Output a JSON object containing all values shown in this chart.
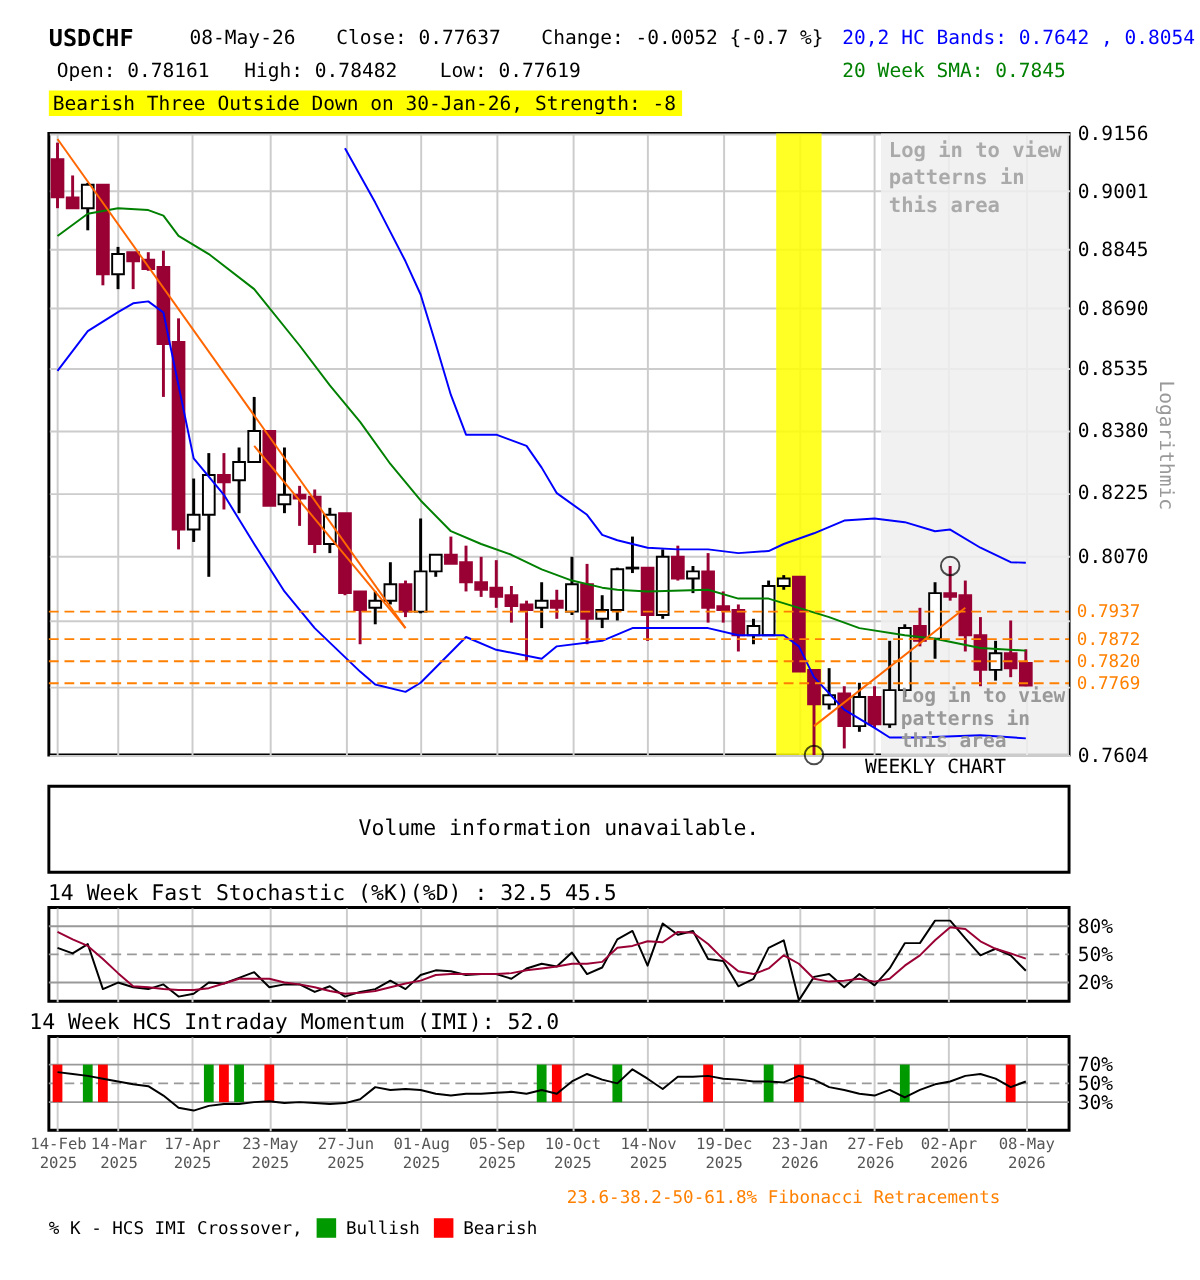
{
  "chart_data": [
    {
      "type": "candlestick",
      "title": "USDCHF",
      "ylabel": "Logarithmic",
      "annotations": [
        "08-May-26",
        "Close: 0.77637",
        "Change: -0.0052 {-0.7 %}",
        "Open: 0.78161",
        "High: 0.78482",
        "Low: 0.77619",
        "20,2 HC Bands: 0.7642 , 0.8054",
        "20 Week SMA: 0.7845",
        "Bearish Three Outside Down on 30-Jan-26, Strength: -8",
        "Log in to view patterns in this area",
        "WEEKLY CHART"
      ],
      "x": [
        "2025-02-14",
        "2025-02-21",
        "2025-02-28",
        "2025-03-07",
        "2025-03-14",
        "2025-03-21",
        "2025-03-28",
        "2025-04-04",
        "2025-04-11",
        "2025-04-18",
        "2025-04-25",
        "2025-05-02",
        "2025-05-09",
        "2025-05-16",
        "2025-05-23",
        "2025-05-30",
        "2025-06-06",
        "2025-06-13",
        "2025-06-20",
        "2025-06-27",
        "2025-07-04",
        "2025-07-11",
        "2025-07-18",
        "2025-07-25",
        "2025-08-01",
        "2025-08-08",
        "2025-08-15",
        "2025-08-22",
        "2025-08-29",
        "2025-09-05",
        "2025-09-12",
        "2025-09-19",
        "2025-09-26",
        "2025-10-03",
        "2025-10-10",
        "2025-10-17",
        "2025-10-24",
        "2025-10-31",
        "2025-11-07",
        "2025-11-14",
        "2025-11-21",
        "2025-11-28",
        "2025-12-05",
        "2025-12-12",
        "2025-12-19",
        "2025-12-26",
        "2026-01-02",
        "2026-01-09",
        "2026-01-16",
        "2026-01-23",
        "2026-01-30",
        "2026-02-06",
        "2026-02-13",
        "2026-02-20",
        "2026-02-27",
        "2026-03-06",
        "2026-03-13",
        "2026-03-20",
        "2026-03-27",
        "2026-04-03",
        "2026-04-10",
        "2026-04-17",
        "2026-04-24",
        "2026-05-01",
        "2026-05-08"
      ],
      "ohlc": [
        [
          0.9086,
          0.9131,
          0.8954,
          0.8983
        ],
        [
          0.8983,
          0.9042,
          0.8954,
          0.8954
        ],
        [
          0.8954,
          0.9022,
          0.8895,
          0.9017
        ],
        [
          0.9017,
          0.9017,
          0.875,
          0.8779
        ],
        [
          0.8779,
          0.8851,
          0.874,
          0.8832
        ],
        [
          0.8837,
          0.8837,
          0.874,
          0.8813
        ],
        [
          0.8817,
          0.8837,
          0.8788,
          0.8793
        ],
        [
          0.8798,
          0.8841,
          0.8463,
          0.8598
        ],
        [
          0.8603,
          0.8664,
          0.8086,
          0.8134
        ],
        [
          0.8134,
          0.8259,
          0.8104,
          0.817
        ],
        [
          0.817,
          0.8322,
          0.802,
          0.8268
        ],
        [
          0.8268,
          0.8322,
          0.8183,
          0.825
        ],
        [
          0.8255,
          0.8336,
          0.8174,
          0.83
        ],
        [
          0.83,
          0.8463,
          0.83,
          0.8377
        ],
        [
          0.8377,
          0.8377,
          0.8192,
          0.8192
        ],
        [
          0.8196,
          0.8336,
          0.8174,
          0.8219
        ],
        [
          0.8219,
          0.8241,
          0.8143,
          0.821
        ],
        [
          0.8214,
          0.8232,
          0.8077,
          0.8099
        ],
        [
          0.8099,
          0.8187,
          0.8077,
          0.817
        ],
        [
          0.8174,
          0.8174,
          0.7976,
          0.7981
        ],
        [
          0.7985,
          0.7985,
          0.786,
          0.7941
        ],
        [
          0.7946,
          0.7985,
          0.7907,
          0.7963
        ],
        [
          0.7963,
          0.8055,
          0.7954,
          0.8002
        ],
        [
          0.8002,
          0.8011,
          0.7924,
          0.7937
        ],
        [
          0.7937,
          0.8161,
          0.7933,
          0.8033
        ],
        [
          0.8033,
          0.8073,
          0.802,
          0.8073
        ],
        [
          0.8073,
          0.8117,
          0.8051,
          0.8051
        ],
        [
          0.8055,
          0.8095,
          0.7985,
          0.8007
        ],
        [
          0.8007,
          0.8068,
          0.7972,
          0.7989
        ],
        [
          0.7994,
          0.806,
          0.7946,
          0.7972
        ],
        [
          0.7976,
          0.7998,
          0.7911,
          0.795
        ],
        [
          0.7954,
          0.7963,
          0.7821,
          0.7941
        ],
        [
          0.7946,
          0.8007,
          0.7898,
          0.7963
        ],
        [
          0.7963,
          0.7989,
          0.792,
          0.7946
        ],
        [
          0.7937,
          0.8068,
          0.7929,
          0.8002
        ],
        [
          0.8002,
          0.8051,
          0.786,
          0.792
        ],
        [
          0.792,
          0.7976,
          0.7898,
          0.7941
        ],
        [
          0.7941,
          0.8042,
          0.7916,
          0.8038
        ],
        [
          0.804,
          0.8117,
          0.8029,
          0.8042
        ],
        [
          0.8042,
          0.8042,
          0.7868,
          0.7929
        ],
        [
          0.7929,
          0.8086,
          0.792,
          0.8068
        ],
        [
          0.8068,
          0.8095,
          0.8011,
          0.8016
        ],
        [
          0.8016,
          0.8046,
          0.7981,
          0.8033
        ],
        [
          0.8033,
          0.8077,
          0.7911,
          0.7946
        ],
        [
          0.795,
          0.7985,
          0.7911,
          0.7941
        ],
        [
          0.7941,
          0.7954,
          0.7843,
          0.7881
        ],
        [
          0.7881,
          0.792,
          0.786,
          0.7903
        ],
        [
          0.7881,
          0.8011,
          0.7881,
          0.7998
        ],
        [
          0.7998,
          0.8024,
          0.7989,
          0.8016
        ],
        [
          0.802,
          0.802,
          0.7796,
          0.7796
        ],
        [
          0.78,
          0.78,
          0.7604,
          0.772
        ],
        [
          0.772,
          0.7804,
          0.7708,
          0.7741
        ],
        [
          0.7745,
          0.7762,
          0.7619,
          0.767
        ],
        [
          0.767,
          0.777,
          0.7657,
          0.7737
        ],
        [
          0.7737,
          0.7762,
          0.7666,
          0.7674
        ],
        [
          0.7674,
          0.7868,
          0.7666,
          0.7753
        ],
        [
          0.7753,
          0.7907,
          0.7737,
          0.7898
        ],
        [
          0.7903,
          0.7946,
          0.7855,
          0.7868
        ],
        [
          0.7873,
          0.8007,
          0.7826,
          0.7981
        ],
        [
          0.7981,
          0.8046,
          0.7963,
          0.7972
        ],
        [
          0.7976,
          0.8011,
          0.7843,
          0.7881
        ],
        [
          0.7881,
          0.7924,
          0.7762,
          0.78
        ],
        [
          0.78,
          0.7868,
          0.7775,
          0.7839
        ],
        [
          0.7839,
          0.7916,
          0.7783,
          0.7804
        ],
        [
          0.78161,
          0.78482,
          0.77619,
          0.77637
        ]
      ],
      "colors": [
        "#990033",
        "#990033",
        "#ffffff",
        "#990033",
        "#ffffff",
        "#990033",
        "#990033",
        "#990033",
        "#990033",
        "#ffffff",
        "#ffffff",
        "#990033",
        "#ffffff",
        "#ffffff",
        "#990033",
        "#ffffff",
        "#990033",
        "#990033",
        "#ffffff",
        "#990033",
        "#990033",
        "#ffffff",
        "#ffffff",
        "#990033",
        "#ffffff",
        "#ffffff",
        "#990033",
        "#990033",
        "#990033",
        "#990033",
        "#990033",
        "#990033",
        "#ffffff",
        "#990033",
        "#ffffff",
        "#990033",
        "#ffffff",
        "#ffffff",
        "#ffffff",
        "#990033",
        "#ffffff",
        "#990033",
        "#ffffff",
        "#990033",
        "#990033",
        "#990033",
        "#ffffff",
        "#ffffff",
        "#ffffff",
        "#990033",
        "#990033",
        "#ffffff",
        "#990033",
        "#ffffff",
        "#990033",
        "#ffffff",
        "#ffffff",
        "#990033",
        "#ffffff",
        "#990033",
        "#990033",
        "#990033",
        "#ffffff",
        "#990033",
        "#990033"
      ],
      "series": [
        {
          "type": "line",
          "color": "#0000ff",
          "x": [
            "2025-06-27",
            "2025-07-11",
            "2025-07-25",
            "2025-08-01",
            "2025-08-08",
            "2025-08-15",
            "2025-08-22",
            "2025-09-05",
            "2025-09-19",
            "2025-09-26",
            "2025-10-03",
            "2025-10-17",
            "2025-10-24",
            "2025-10-31",
            "2025-11-14",
            "2025-11-28",
            "2025-12-12",
            "2025-12-26",
            "2026-01-09",
            "2026-01-16",
            "2026-01-30",
            "2026-02-13",
            "2026-02-27",
            "2026-03-13",
            "2026-03-27",
            "2026-04-03",
            "2026-04-17",
            "2026-05-01",
            "2026-05-08"
          ],
          "values": [
            0.9116,
            0.8969,
            0.8813,
            0.8726,
            0.8598,
            0.8468,
            0.8368,
            0.8368,
            0.834,
            0.8286,
            0.8223,
            0.817,
            0.8121,
            0.8108,
            0.809,
            0.8086,
            0.8086,
            0.8077,
            0.8082,
            0.8099,
            0.8125,
            0.8156,
            0.8161,
            0.8152,
            0.813,
            0.8134,
            0.809,
            0.8055,
            0.8054
          ]
        },
        {
          "type": "line",
          "color": "#0000ff",
          "x": [
            "2025-02-14",
            "2025-02-28",
            "2025-03-14",
            "2025-03-21",
            "2025-03-28",
            "2025-04-04",
            "2025-04-11",
            "2025-04-18",
            "2025-05-02",
            "2025-05-16",
            "2025-05-30",
            "2025-06-13",
            "2025-07-04",
            "2025-07-11",
            "2025-07-25",
            "2025-08-01",
            "2025-08-22",
            "2025-09-05",
            "2025-09-26",
            "2025-10-03",
            "2025-10-24",
            "2025-11-07",
            "2025-12-12",
            "2025-12-26",
            "2026-01-16",
            "2026-01-23",
            "2026-01-30",
            "2026-02-13",
            "2026-02-27",
            "2026-03-06",
            "2026-03-20",
            "2026-04-17",
            "2026-05-08"
          ],
          "values": [
            0.8529,
            0.8631,
            0.868,
            0.8703,
            0.8708,
            0.8679,
            0.8492,
            0.8309,
            0.8219,
            0.8099,
            0.7985,
            0.7898,
            0.7796,
            0.7766,
            0.7749,
            0.777,
            0.7877,
            0.7847,
            0.7826,
            0.7855,
            0.7868,
            0.7898,
            0.7898,
            0.7881,
            0.7881,
            0.7855,
            0.7783,
            0.7708,
            0.7666,
            0.7644,
            0.7644,
            0.7649,
            0.7642
          ]
        },
        {
          "type": "line",
          "color": "#008000",
          "x": [
            "2025-02-14",
            "2025-02-28",
            "2025-03-14",
            "2025-03-28",
            "2025-04-04",
            "2025-04-11",
            "2025-04-25",
            "2025-05-16",
            "2025-06-06",
            "2025-06-20",
            "2025-07-04",
            "2025-07-18",
            "2025-08-01",
            "2025-08-15",
            "2025-08-29",
            "2025-09-12",
            "2025-09-26",
            "2025-10-10",
            "2025-10-24",
            "2025-10-31",
            "2025-11-14",
            "2025-12-12",
            "2025-12-26",
            "2026-01-09",
            "2026-01-23",
            "2026-02-06",
            "2026-02-20",
            "2026-03-13",
            "2026-03-27",
            "2026-04-17",
            "2026-05-08"
          ],
          "values": [
            0.888,
            0.8939,
            0.8954,
            0.8949,
            0.8934,
            0.888,
            0.8832,
            0.874,
            0.8594,
            0.8492,
            0.84,
            0.8295,
            0.8205,
            0.813,
            0.8099,
            0.8073,
            0.8038,
            0.8011,
            0.7994,
            0.7989,
            0.7985,
            0.7989,
            0.7968,
            0.7968,
            0.7946,
            0.7924,
            0.7898,
            0.7881,
            0.7873,
            0.7851,
            0.7845
          ]
        },
        {
          "type": "line",
          "color": "#ff6600",
          "x": [
            "2025-02-14",
            "2025-07-25"
          ],
          "values": [
            0.9141,
            0.7898
          ]
        },
        {
          "type": "line",
          "color": "#ff6600",
          "x": [
            "2025-05-16",
            "2025-07-25"
          ],
          "values": [
            0.834,
            0.7898
          ]
        },
        {
          "type": "line",
          "color": "#ff6600",
          "x": [
            "2026-01-30",
            "2026-04-10"
          ],
          "values": [
            0.767,
            0.7946
          ]
        },
        {
          "type": "scatter",
          "color": "#000000",
          "marker": "circle",
          "x": [
            "2026-01-30",
            "2026-04-03"
          ],
          "values": [
            0.7604,
            0.8046
          ]
        }
      ],
      "log": "y",
      "ylim": [
        0.7604,
        0.9156
      ],
      "yticks": [
        0.9156,
        0.9001,
        0.8845,
        {
          "value": 0.869,
          "label": "0.8690"
        },
        0.8535,
        {
          "value": 0.838,
          "label": "0.8380"
        },
        0.8225,
        {
          "value": 0.807,
          "label": "0.8070"
        },
        {
          "value": 0.7915,
          "label": null
        },
        {
          "value": 0.776,
          "label": null
        },
        0.7604
      ],
      "xlim": [
        "2025-02-10",
        "2026-05-28"
      ],
      "xticks": [
        {
          "value": "2025-02-14",
          "label": null
        },
        {
          "value": "2025-03-14",
          "label": null
        },
        {
          "value": "2025-04-17",
          "label": null
        },
        {
          "value": "2025-05-23",
          "label": null
        },
        {
          "value": "2025-06-27",
          "label": null
        },
        {
          "value": "2025-08-01",
          "label": null
        },
        {
          "value": "2025-09-05",
          "label": null
        },
        {
          "value": "2025-10-10",
          "label": null
        },
        {
          "value": "2025-11-14",
          "label": null
        },
        {
          "value": "2025-12-19",
          "label": null
        },
        {
          "value": "2026-01-23",
          "label": null
        },
        {
          "value": "2026-02-27",
          "label": null
        },
        {
          "value": "2026-04-02",
          "label": null
        },
        {
          "value": "2026-05-08",
          "label": null
        }
      ],
      "tick_labels": "y",
      "grid": true,
      "bands": [
        {
          "axis": "x",
          "from": "2026-01-12T12:00",
          "to": "2026-02-02T12:00",
          "color": "#ffff00"
        },
        {
          "axis": "x",
          "from": "2026-03-02",
          "to": "2026-05-28",
          "color": "#efefef",
          "label": "Log in to view patterns in this area"
        }
      ],
      "ref_lines": [
        {
          "axis": "y",
          "value": 0.7937,
          "label": "0.7937",
          "color": "#ff8000",
          "line_style": "dashed"
        },
        {
          "axis": "y",
          "value": 0.7872,
          "label": "0.7872",
          "color": "#ff8000",
          "line_style": "dashed"
        },
        {
          "axis": "y",
          "value": 0.782,
          "label": "0.7820",
          "color": "#ff8000",
          "line_style": "dashed"
        },
        {
          "axis": "y",
          "value": 0.7769,
          "label": "0.7769",
          "color": "#ff8000",
          "line_style": "dashed"
        }
      ]
    },
    {
      "type": "other",
      "annotations": [
        "Volume information unavailable."
      ]
    },
    {
      "type": "line",
      "title": "14 Week Fast Stochastic (%K)(%D) : 32.5 45.5",
      "x": [
        "2025-02-14",
        "2025-02-21",
        "2025-02-28",
        "2025-03-07",
        "2025-03-14",
        "2025-03-21",
        "2025-03-28",
        "2025-04-04",
        "2025-04-11",
        "2025-04-18",
        "2025-04-25",
        "2025-05-02",
        "2025-05-09",
        "2025-05-16",
        "2025-05-23",
        "2025-05-30",
        "2025-06-06",
        "2025-06-13",
        "2025-06-20",
        "2025-06-27",
        "2025-07-04",
        "2025-07-11",
        "2025-07-18",
        "2025-07-25",
        "2025-08-01",
        "2025-08-08",
        "2025-08-15",
        "2025-08-22",
        "2025-08-29",
        "2025-09-05",
        "2025-09-12",
        "2025-09-19",
        "2025-09-26",
        "2025-10-03",
        "2025-10-10",
        "2025-10-17",
        "2025-10-24",
        "2025-10-31",
        "2025-11-07",
        "2025-11-14",
        "2025-11-21",
        "2025-11-28",
        "2025-12-05",
        "2025-12-12",
        "2025-12-19",
        "2025-12-26",
        "2026-01-02",
        "2026-01-09",
        "2026-01-16",
        "2026-01-23",
        "2026-01-30",
        "2026-02-06",
        "2026-02-13",
        "2026-02-20",
        "2026-02-27",
        "2026-03-06",
        "2026-03-13",
        "2026-03-20",
        "2026-03-27",
        "2026-04-03",
        "2026-04-10",
        "2026-04-17",
        "2026-04-24",
        "2026-05-01",
        "2026-05-08"
      ],
      "series": [
        {
          "color": "#000000",
          "values": [
            57,
            51,
            61,
            13,
            20,
            15,
            13,
            18,
            5,
            8,
            20,
            19,
            25,
            31,
            15,
            18,
            18,
            10,
            16,
            5,
            10,
            13,
            22,
            13,
            28,
            33,
            32,
            28,
            29,
            29,
            24,
            35,
            40,
            37,
            52,
            29,
            36,
            66,
            75,
            38,
            83,
            71,
            75,
            45,
            43,
            16,
            24,
            57,
            65,
            1,
            26,
            29,
            15,
            29,
            17,
            35,
            62,
            62,
            86,
            86,
            67,
            49,
            56,
            49,
            32.5
          ]
        },
        {
          "color": "#990033",
          "values": [
            74,
            66,
            59,
            45,
            30,
            16,
            15,
            13,
            12,
            12,
            14,
            19,
            24,
            24,
            24,
            20,
            18,
            15,
            11,
            8,
            9,
            11,
            15,
            19,
            22,
            28,
            29,
            29,
            29,
            29,
            30,
            33,
            35,
            37,
            40,
            40,
            42,
            57,
            59,
            64,
            63,
            74,
            73,
            61,
            45,
            32,
            29,
            35,
            49,
            40,
            24,
            21,
            22,
            24,
            21,
            24,
            38,
            49,
            65,
            79,
            77,
            64,
            56,
            51,
            45.5
          ]
        }
      ],
      "xlim": [
        "2025-02-10",
        "2026-05-28"
      ],
      "xticks": [
        {
          "value": "2025-02-14",
          "label": null
        },
        {
          "value": "2025-03-14",
          "label": null
        },
        {
          "value": "2025-04-17",
          "label": null
        },
        {
          "value": "2025-05-23",
          "label": null
        },
        {
          "value": "2025-06-27",
          "label": null
        },
        {
          "value": "2025-08-01",
          "label": null
        },
        {
          "value": "2025-09-05",
          "label": null
        },
        {
          "value": "2025-10-10",
          "label": null
        },
        {
          "value": "2025-11-14",
          "label": null
        },
        {
          "value": "2025-12-19",
          "label": null
        },
        {
          "value": "2026-01-23",
          "label": null
        },
        {
          "value": "2026-02-27",
          "label": null
        },
        {
          "value": "2026-04-02",
          "label": null
        },
        {
          "value": "2026-05-08",
          "label": null
        }
      ],
      "ylim": [
        0,
        100
      ],
      "yticks": [
        {
          "value": 20,
          "label": "20%"
        },
        {
          "value": 50,
          "label": "50%"
        },
        {
          "value": 80,
          "label": "80%"
        }
      ],
      "tick_labels": "y",
      "grid": "x",
      "ref_lines": [
        {
          "axis": "y",
          "value": 20,
          "color": "#999999",
          "line_style": "solid"
        },
        {
          "axis": "y",
          "value": 50,
          "color": "#999999",
          "line_style": "dashed"
        },
        {
          "axis": "y",
          "value": 80,
          "color": "#999999",
          "line_style": "solid"
        }
      ]
    },
    {
      "type": "line",
      "title": "14 Week HCS Intraday Momentum (IMI): 52.0",
      "legend_title": "% K - HCS IMI Crossover,",
      "legend": "bottom",
      "annotations": [
        "23.6-38.2-50-61.8% Fibonacci Retracements"
      ],
      "x": [
        "2025-02-14",
        "2025-02-21",
        "2025-02-28",
        "2025-03-07",
        "2025-03-14",
        "2025-03-21",
        "2025-03-28",
        "2025-04-04",
        "2025-04-11",
        "2025-04-18",
        "2025-04-25",
        "2025-05-02",
        "2025-05-09",
        "2025-05-16",
        "2025-05-23",
        "2025-05-30",
        "2025-06-06",
        "2025-06-13",
        "2025-06-20",
        "2025-06-27",
        "2025-07-04",
        "2025-07-11",
        "2025-07-18",
        "2025-07-25",
        "2025-08-01",
        "2025-08-08",
        "2025-08-15",
        "2025-08-22",
        "2025-08-29",
        "2025-09-05",
        "2025-09-12",
        "2025-09-19",
        "2025-09-26",
        "2025-10-03",
        "2025-10-10",
        "2025-10-17",
        "2025-10-24",
        "2025-10-31",
        "2025-11-07",
        "2025-11-14",
        "2025-11-21",
        "2025-11-28",
        "2025-12-05",
        "2025-12-12",
        "2025-12-19",
        "2025-12-26",
        "2026-01-02",
        "2026-01-09",
        "2026-01-16",
        "2026-01-23",
        "2026-01-30",
        "2026-02-06",
        "2026-02-13",
        "2026-02-20",
        "2026-02-27",
        "2026-03-06",
        "2026-03-13",
        "2026-03-20",
        "2026-03-27",
        "2026-04-03",
        "2026-04-10",
        "2026-04-17",
        "2026-04-24",
        "2026-05-01",
        "2026-05-08"
      ],
      "series": [
        {
          "type": "bar",
          "name": "Bullish",
          "color": "#009900",
          "x": [
            "2025-02-28",
            "2025-04-25",
            "2025-05-09",
            "2025-09-26",
            "2025-10-31",
            "2026-01-09",
            "2026-03-13"
          ],
          "base": [
            30,
            30,
            30,
            30,
            30,
            30,
            30
          ],
          "values": [
            40,
            40,
            40,
            40,
            40,
            40,
            40
          ]
        },
        {
          "type": "bar",
          "name": "Bearish",
          "color": "#ff0000",
          "x": [
            "2025-02-14",
            "2025-03-07",
            "2025-05-02",
            "2025-05-23",
            "2025-10-03",
            "2025-12-12",
            "2026-01-23",
            "2026-05-01"
          ],
          "base": [
            30,
            30,
            30,
            30,
            30,
            30,
            30,
            30
          ],
          "values": [
            40,
            40,
            40,
            40,
            40,
            40,
            40,
            40
          ]
        },
        {
          "type": "line",
          "color": "#000000",
          "values": [
            62,
            60,
            58,
            55,
            52,
            49,
            47,
            37,
            24,
            21,
            26,
            28,
            28,
            30,
            31,
            29,
            30,
            29,
            28,
            29,
            33,
            46,
            43,
            44,
            43,
            39,
            37,
            39,
            39,
            40,
            41,
            39,
            43,
            39,
            52,
            60,
            54,
            50,
            65,
            55,
            44,
            57,
            57,
            58,
            55,
            54,
            52,
            52,
            51,
            58,
            54,
            46,
            43,
            39,
            37,
            43,
            35,
            43,
            49,
            52,
            58,
            60,
            55,
            46,
            52
          ]
        }
      ],
      "xlim": [
        "2025-02-10",
        "2026-05-28"
      ],
      "xticks": [
        {
          "value": "2025-02-14",
          "label": "14-Feb 2025"
        },
        {
          "value": "2025-03-14",
          "label": "14-Mar 2025"
        },
        {
          "value": "2025-04-17",
          "label": "17-Apr 2025"
        },
        {
          "value": "2025-05-23",
          "label": "23-May 2025"
        },
        {
          "value": "2025-06-27",
          "label": "27-Jun 2025"
        },
        {
          "value": "2025-08-01",
          "label": "01-Aug 2025"
        },
        {
          "value": "2025-09-05",
          "label": "05-Sep 2025"
        },
        {
          "value": "2025-10-10",
          "label": "10-Oct 2025"
        },
        {
          "value": "2025-11-14",
          "label": "14-Nov 2025"
        },
        {
          "value": "2025-12-19",
          "label": "19-Dec 2025"
        },
        {
          "value": "2026-01-23",
          "label": "23-Jan 2026"
        },
        {
          "value": "2026-02-27",
          "label": "27-Feb 2026"
        },
        {
          "value": "2026-04-02",
          "label": "02-Apr 2026"
        },
        {
          "value": "2026-05-08",
          "label": "08-May 2026"
        }
      ],
      "ylim": [
        0,
        100
      ],
      "yticks": [
        {
          "value": 30,
          "label": "30%"
        },
        {
          "value": 50,
          "label": "50%"
        },
        {
          "value": 70,
          "label": "70%"
        }
      ],
      "grid": "x",
      "ref_lines": [
        {
          "axis": "y",
          "value": 30,
          "color": "#999999",
          "line_style": "solid"
        },
        {
          "axis": "y",
          "value": 50,
          "color": "#999999",
          "line_style": "dashed"
        },
        {
          "axis": "y",
          "value": 70,
          "color": "#999999",
          "line_style": "solid"
        }
      ]
    }
  ]
}
